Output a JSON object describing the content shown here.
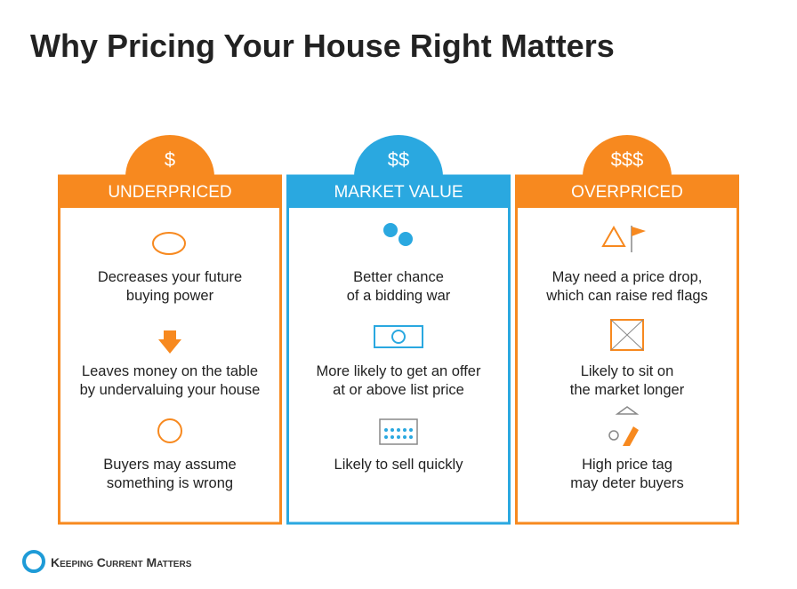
{
  "title": "Why Pricing Your House Right Matters",
  "columns": [
    {
      "tab": "$",
      "header": "UNDERPRICED",
      "items": [
        {
          "lines": [
            "Decreases your future",
            "buying power"
          ]
        },
        {
          "lines": [
            "Leaves money on the table",
            "by undervaluing your house"
          ]
        },
        {
          "lines": [
            "Buyers may assume",
            "something is wrong"
          ]
        }
      ]
    },
    {
      "tab": "$$",
      "header": "MARKET VALUE",
      "items": [
        {
          "lines": [
            "Better chance",
            "of a bidding war"
          ]
        },
        {
          "lines": [
            "More likely to get an offer",
            "at or above list price"
          ]
        },
        {
          "lines": [
            "Likely to sell quickly"
          ]
        }
      ]
    },
    {
      "tab": "$$$",
      "header": "OVERPRICED",
      "items": [
        {
          "lines": [
            "May need a price drop,",
            "which can raise red flags"
          ]
        },
        {
          "lines": [
            "Likely to sit on",
            "the market longer"
          ]
        },
        {
          "lines": [
            "High price tag",
            "may deter buyers"
          ]
        }
      ]
    }
  ],
  "footer": {
    "logo": "Keeping Current Matters"
  }
}
